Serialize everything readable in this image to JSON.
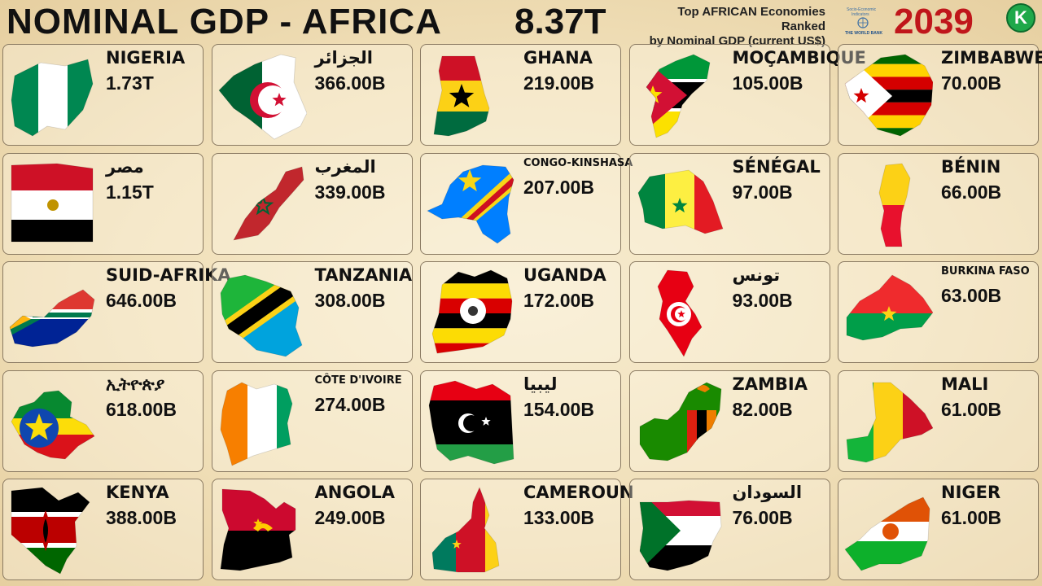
{
  "header": {
    "title": "NOMINAL GDP - AFRICA",
    "total": "8.37T",
    "subtitle_line1": "Top AFRICAN Economies Ranked",
    "subtitle_line2": "by Nominal GDP (current US$)",
    "source_logo_line1": "Socio-Economic",
    "source_logo_line2": "Indicators",
    "source_logo_line3": "THE WORLD BANK",
    "year": "2039",
    "channel_logo": "K"
  },
  "chart_data": {
    "type": "table",
    "title": "NOMINAL GDP - AFRICA",
    "year": "2039",
    "total": "8.37T",
    "entries": [
      {
        "name": "NIGERIA",
        "value": "1.73T",
        "value_usd_billions": 1730,
        "flag_icon": "nigeria-flag-map-icon",
        "colors": [
          "#008751",
          "#ffffff"
        ]
      },
      {
        "name": "مصر",
        "value": "1.15T",
        "value_usd_billions": 1150,
        "flag_icon": "egypt-flag-map-icon",
        "colors": [
          "#ce1126",
          "#ffffff",
          "#000000"
        ]
      },
      {
        "name": "SUID-AFRIKA",
        "value": "646.00B",
        "value_usd_billions": 646,
        "flag_icon": "south-africa-flag-map-icon",
        "colors": [
          "#007a4d",
          "#de3831",
          "#002395",
          "#ffb612"
        ]
      },
      {
        "name": "ኢትዮጵያ",
        "value": "618.00B",
        "value_usd_billions": 618,
        "flag_icon": "ethiopia-flag-map-icon",
        "colors": [
          "#078930",
          "#fcdd09",
          "#da121a",
          "#0f47af"
        ]
      },
      {
        "name": "KENYA",
        "value": "388.00B",
        "value_usd_billions": 388,
        "flag_icon": "kenya-flag-map-icon",
        "colors": [
          "#000000",
          "#bb0000",
          "#006600",
          "#ffffff"
        ]
      },
      {
        "name": "الجزائر",
        "value": "366.00B",
        "value_usd_billions": 366,
        "flag_icon": "algeria-flag-map-icon",
        "colors": [
          "#006233",
          "#ffffff",
          "#d21034"
        ]
      },
      {
        "name": "المغرب",
        "value": "339.00B",
        "value_usd_billions": 339,
        "flag_icon": "morocco-flag-map-icon",
        "colors": [
          "#c1272d",
          "#006233"
        ]
      },
      {
        "name": "TANZANIA",
        "value": "308.00B",
        "value_usd_billions": 308,
        "flag_icon": "tanzania-flag-map-icon",
        "colors": [
          "#1eb53a",
          "#00a3dd",
          "#fcd116",
          "#000000"
        ]
      },
      {
        "name": "CÔTE D'IVOIRE",
        "value": "274.00B",
        "value_usd_billions": 274,
        "flag_icon": "cote-divoire-flag-map-icon",
        "colors": [
          "#f77f00",
          "#ffffff",
          "#009e60"
        ]
      },
      {
        "name": "ANGOLA",
        "value": "249.00B",
        "value_usd_billions": 249,
        "flag_icon": "angola-flag-map-icon",
        "colors": [
          "#cc092f",
          "#000000",
          "#ffcb00"
        ]
      },
      {
        "name": "GHANA",
        "value": "219.00B",
        "value_usd_billions": 219,
        "flag_icon": "ghana-flag-map-icon",
        "colors": [
          "#ce1126",
          "#fcd116",
          "#006b3f",
          "#000000"
        ]
      },
      {
        "name": "CONGO-KINSHASA",
        "value": "207.00B",
        "value_usd_billions": 207,
        "flag_icon": "dr-congo-flag-map-icon",
        "colors": [
          "#007fff",
          "#f7d618",
          "#ce1021"
        ]
      },
      {
        "name": "UGANDA",
        "value": "172.00B",
        "value_usd_billions": 172,
        "flag_icon": "uganda-flag-map-icon",
        "colors": [
          "#000000",
          "#fcdc04",
          "#d90000"
        ]
      },
      {
        "name": "ليبيا",
        "value": "154.00B",
        "value_usd_billions": 154,
        "flag_icon": "libya-flag-map-icon",
        "colors": [
          "#e70013",
          "#000000",
          "#239e46"
        ]
      },
      {
        "name": "CAMEROUN",
        "value": "133.00B",
        "value_usd_billions": 133,
        "flag_icon": "cameroon-flag-map-icon",
        "colors": [
          "#007a5e",
          "#ce1126",
          "#fcd116"
        ]
      },
      {
        "name": "MOÇAMBIQUE",
        "value": "105.00B",
        "value_usd_billions": 105,
        "flag_icon": "mozambique-flag-map-icon",
        "colors": [
          "#009739",
          "#000000",
          "#fce100",
          "#d21034"
        ]
      },
      {
        "name": "SÉNÉGAL",
        "value": "97.00B",
        "value_usd_billions": 97,
        "flag_icon": "senegal-flag-map-icon",
        "colors": [
          "#00853f",
          "#fdef42",
          "#e31b23"
        ]
      },
      {
        "name": "تونس",
        "value": "93.00B",
        "value_usd_billions": 93,
        "flag_icon": "tunisia-flag-map-icon",
        "colors": [
          "#e70013",
          "#ffffff"
        ]
      },
      {
        "name": "ZAMBIA",
        "value": "82.00B",
        "value_usd_billions": 82,
        "flag_icon": "zambia-flag-map-icon",
        "colors": [
          "#198a00",
          "#de2010",
          "#000000",
          "#ef7d00"
        ]
      },
      {
        "name": "السودان",
        "value": "76.00B",
        "value_usd_billions": 76,
        "flag_icon": "sudan-flag-map-icon",
        "colors": [
          "#d21034",
          "#ffffff",
          "#000000",
          "#007229"
        ]
      },
      {
        "name": "ZIMBABWE",
        "value": "70.00B",
        "value_usd_billions": 70,
        "flag_icon": "zimbabwe-flag-map-icon",
        "colors": [
          "#006400",
          "#ffd200",
          "#d40000",
          "#000000"
        ]
      },
      {
        "name": "BÉNIN",
        "value": "66.00B",
        "value_usd_billions": 66,
        "flag_icon": "benin-flag-map-icon",
        "colors": [
          "#008751",
          "#fcd116",
          "#e8112d"
        ]
      },
      {
        "name": "BURKINA FASO",
        "value": "63.00B",
        "value_usd_billions": 63,
        "flag_icon": "burkina-faso-flag-map-icon",
        "colors": [
          "#ef2b2d",
          "#009e49",
          "#fcd116"
        ]
      },
      {
        "name": "MALI",
        "value": "61.00B",
        "value_usd_billions": 61,
        "flag_icon": "mali-flag-map-icon",
        "colors": [
          "#14b53a",
          "#fcd116",
          "#ce1126"
        ]
      },
      {
        "name": "NIGER",
        "value": "61.00B",
        "value_usd_billions": 61,
        "flag_icon": "niger-flag-map-icon",
        "colors": [
          "#e05206",
          "#ffffff",
          "#0db02b"
        ]
      }
    ]
  }
}
